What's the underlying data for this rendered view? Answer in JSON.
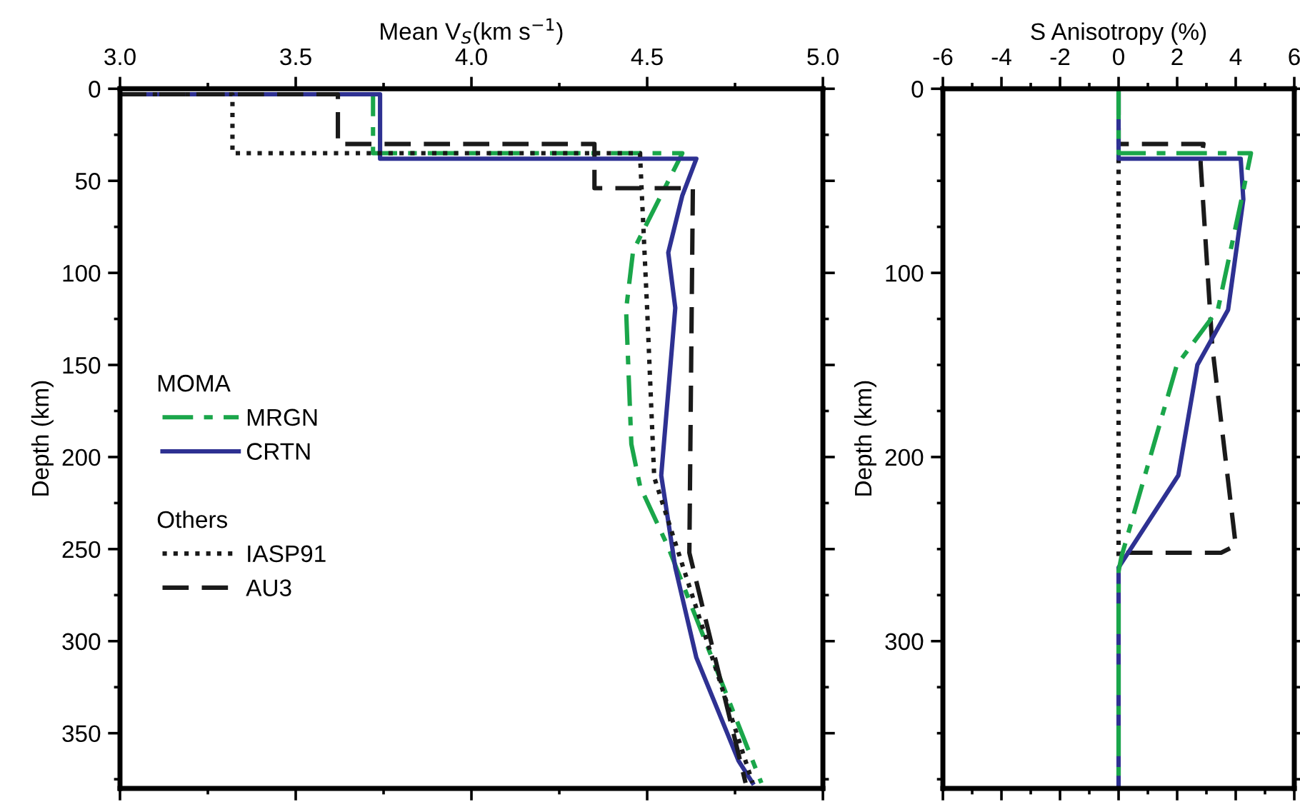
{
  "chart_data": [
    {
      "type": "line",
      "xlabel": "Mean V$_{S}$(km s$^{−1}$)",
      "ylabel": "Depth (km)",
      "xlim": [
        3.0,
        5.0
      ],
      "xticks": [
        {
          "value": 3.0,
          "label": "3.0"
        },
        {
          "value": 3.25,
          "label": null
        },
        {
          "value": 3.5,
          "label": "3.5"
        },
        {
          "value": 3.75,
          "label": null
        },
        {
          "value": 4.0,
          "label": "4.0"
        },
        {
          "value": 4.25,
          "label": null
        },
        {
          "value": 4.5,
          "label": "4.5"
        },
        {
          "value": 4.75,
          "label": null
        },
        {
          "value": 5.0,
          "label": "5.0"
        }
      ],
      "ylim": [
        380,
        0
      ],
      "yticks": [
        0,
        {
          "value": 25,
          "label": null
        },
        50,
        {
          "value": 75,
          "label": null
        },
        100,
        {
          "value": 125,
          "label": null
        },
        150,
        {
          "value": 175,
          "label": null
        },
        200,
        {
          "value": 225,
          "label": null
        },
        250,
        {
          "value": 275,
          "label": null
        },
        300,
        {
          "value": 325,
          "label": null
        },
        350,
        {
          "value": 375,
          "label": null
        }
      ],
      "legend": "center left",
      "annotations": [
        "MOMA",
        "Others"
      ],
      "grid": false,
      "series": [
        {
          "name": "MRGN",
          "color": "#1aa64a",
          "line_style": "dashdot",
          "x": [
            3.0,
            3.72,
            3.72,
            4.6,
            4.46,
            4.44,
            4.455,
            4.48,
            4.56,
            4.825
          ],
          "values": [
            3,
            3,
            35,
            35,
            88,
            120,
            193,
            216,
            249,
            377
          ]
        },
        {
          "name": "CRTN",
          "color": "#2e3192",
          "line_style": "solid",
          "x": [
            3.0,
            3.74,
            3.74,
            4.64,
            4.6,
            4.56,
            4.58,
            4.54,
            4.58,
            4.64,
            4.76,
            4.8
          ],
          "values": [
            3,
            3,
            38,
            38,
            58,
            89,
            119,
            210,
            260,
            309,
            365,
            377
          ]
        },
        {
          "name": "IASP91",
          "color": "#1a1a1a",
          "line_style": "dotted",
          "x": [
            3.0,
            3.32,
            3.32,
            4.48,
            4.48,
            4.5,
            4.52,
            4.8
          ],
          "values": [
            3,
            3,
            35,
            35,
            37,
            120,
            211,
            377
          ]
        },
        {
          "name": "AU3",
          "color": "#1a1a1a",
          "line_style": "dashed",
          "x": [
            3.0,
            3.62,
            3.62,
            4.35,
            4.35,
            4.63,
            4.62,
            4.78
          ],
          "values": [
            3,
            3,
            30,
            30,
            54,
            54,
            252,
            377
          ]
        }
      ]
    },
    {
      "type": "line",
      "xlabel": "S Anisotropy (%)",
      "ylabel": "Depth (km)",
      "xlim": [
        -6,
        6
      ],
      "xticks": [
        -6,
        {
          "value": -5,
          "label": null
        },
        -4,
        {
          "value": -3,
          "label": null
        },
        -2,
        {
          "value": -1,
          "label": null
        },
        0,
        {
          "value": 1,
          "label": null
        },
        2,
        {
          "value": 3,
          "label": null
        },
        4,
        {
          "value": 5,
          "label": null
        },
        6
      ],
      "ylim": [
        380,
        0
      ],
      "yticks": [
        0,
        {
          "value": 25,
          "label": null
        },
        {
          "value": 50,
          "label": null
        },
        {
          "value": 75,
          "label": null
        },
        100,
        {
          "value": 125,
          "label": null
        },
        {
          "value": 150,
          "label": null
        },
        {
          "value": 175,
          "label": null
        },
        200,
        {
          "value": 225,
          "label": null
        },
        {
          "value": 250,
          "label": null
        },
        {
          "value": 275,
          "label": null
        },
        300,
        {
          "value": 325,
          "label": null
        },
        {
          "value": 350,
          "label": null
        },
        {
          "value": 375,
          "label": null
        }
      ],
      "grid": false,
      "series": [
        {
          "color": "#1a1a1a",
          "line_style": "dashed",
          "x": [
            0,
            0,
            2.9,
            2.8,
            3.2,
            4.0,
            3.5,
            0
          ],
          "values": [
            0,
            30,
            30,
            40,
            140,
            248,
            252,
            252
          ]
        },
        {
          "color": "#1a1a1a",
          "line_style": "dotted",
          "x": [
            0,
            0
          ],
          "values": [
            38,
            255
          ]
        },
        {
          "color": "#2e3192",
          "line_style": "solid",
          "x": [
            0,
            0,
            4.17,
            4.26,
            3.74,
            2.69,
            2.04,
            0,
            0
          ],
          "values": [
            0,
            38,
            38,
            60,
            120,
            150,
            210,
            260,
            380
          ]
        },
        {
          "color": "#1aa64a",
          "line_style": "dashdot",
          "x": [
            0,
            0,
            4.52,
            4.2,
            3.39,
            1.99,
            0.1,
            0,
            0
          ],
          "values": [
            0,
            35,
            35,
            60,
            120,
            150,
            254,
            262,
            380
          ]
        }
      ]
    }
  ]
}
